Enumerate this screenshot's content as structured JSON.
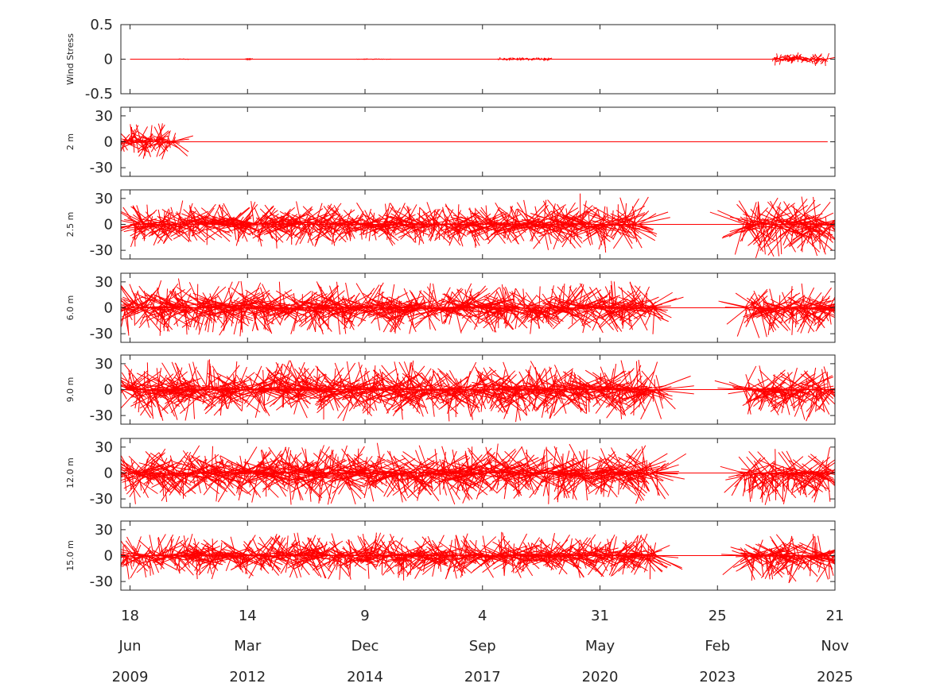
{
  "figure": {
    "color_stick": "#ff0000",
    "color_axes": "#262626",
    "x_axis": {
      "ticks": [
        {
          "day": "18",
          "month": "Jun",
          "year": "2009",
          "date": "2009-06-18"
        },
        {
          "day": "14",
          "month": "Mar",
          "year": "2012",
          "date": "2012-03-14"
        },
        {
          "day": "9",
          "month": "Dec",
          "year": "2014",
          "date": "2014-12-09"
        },
        {
          "day": "4",
          "month": "Sep",
          "year": "2017",
          "date": "2017-09-04"
        },
        {
          "day": "31",
          "month": "May",
          "year": "2020",
          "date": "2020-05-31"
        },
        {
          "day": "25",
          "month": "Feb",
          "year": "2023",
          "date": "2023-02-25"
        },
        {
          "day": "21",
          "month": "Nov",
          "year": "2025",
          "date": "2025-11-21"
        }
      ],
      "range": [
        "2009-04-01",
        "2025-11-21"
      ]
    }
  },
  "chart_data": [
    {
      "type": "stick-vector",
      "ylabel": "Wind Stress",
      "ylim": [
        -0.5,
        0.5
      ],
      "yticks": [
        "0.5",
        "0",
        "-0.5"
      ],
      "baseline": {
        "start": "2009-06-18",
        "end": "2025-09-20"
      },
      "data_spans": [
        {
          "start": "2010-08-01",
          "end": "2010-11-01",
          "amp": 0.01,
          "bias": 0.0
        },
        {
          "start": "2012-03-01",
          "end": "2012-04-20",
          "amp": 0.02,
          "bias": 0.0
        },
        {
          "start": "2014-10-01",
          "end": "2015-08-01",
          "amp": 0.01,
          "bias": 0.0
        },
        {
          "start": "2018-01-15",
          "end": "2019-04-01",
          "amp": 0.03,
          "bias": 0.0
        },
        {
          "start": "2024-06-15",
          "end": "2025-09-15",
          "amp": 0.1,
          "bias": 0.0
        }
      ]
    },
    {
      "type": "stick-vector",
      "ylabel": "2 m",
      "ylim": [
        -40,
        40
      ],
      "yticks": [
        "30",
        "0",
        "-30"
      ],
      "baseline": {
        "start": "2009-06-18",
        "end": "2025-09-20"
      },
      "data_spans": [
        {
          "start": "2009-04-01",
          "end": "2010-07-01",
          "amp": 22,
          "bias": 0
        }
      ]
    },
    {
      "type": "stick-vector",
      "ylabel": "2.5 m",
      "ylim": [
        -40,
        40
      ],
      "yticks": [
        "30",
        "0",
        "-30"
      ],
      "baseline": {
        "start": "2009-06-18",
        "end": "2025-09-20"
      },
      "data_spans": [
        {
          "start": "2009-07-01",
          "end": "2018-09-01",
          "amp": 28,
          "bias": 0
        },
        {
          "start": "2018-09-01",
          "end": "2021-05-01",
          "amp": 34,
          "bias": 2
        },
        {
          "start": "2023-10-01",
          "end": "2025-11-21",
          "amp": 36,
          "bias": -8
        }
      ]
    },
    {
      "type": "stick-vector",
      "ylabel": "6.0 m",
      "ylim": [
        -40,
        40
      ],
      "yticks": [
        "30",
        "0",
        "-30"
      ],
      "baseline": {
        "start": "2009-06-18",
        "end": "2025-09-20"
      },
      "data_spans": [
        {
          "start": "2009-04-01",
          "end": "2012-03-01",
          "amp": 36,
          "bias": -4
        },
        {
          "start": "2012-03-01",
          "end": "2021-10-01",
          "amp": 32,
          "bias": 0
        },
        {
          "start": "2023-10-01",
          "end": "2025-11-21",
          "amp": 30,
          "bias": -8
        }
      ]
    },
    {
      "type": "stick-vector",
      "ylabel": "9.0 m",
      "ylim": [
        -40,
        40
      ],
      "yticks": [
        "30",
        "0",
        "-30"
      ],
      "baseline": {
        "start": "2009-06-18",
        "end": "2025-09-20"
      },
      "data_spans": [
        {
          "start": "2009-04-01",
          "end": "2021-11-01",
          "amp": 36,
          "bias": -2
        },
        {
          "start": "2023-10-01",
          "end": "2025-11-21",
          "amp": 32,
          "bias": -8
        }
      ]
    },
    {
      "type": "stick-vector",
      "ylabel": "12.0 m",
      "ylim": [
        -40,
        40
      ],
      "yticks": [
        "30",
        "0",
        "-30"
      ],
      "baseline": {
        "start": "2009-06-18",
        "end": "2025-09-20"
      },
      "data_spans": [
        {
          "start": "2009-04-01",
          "end": "2021-10-01",
          "amp": 36,
          "bias": -2
        },
        {
          "start": "2023-10-01",
          "end": "2025-11-21",
          "amp": 32,
          "bias": -8
        }
      ]
    },
    {
      "type": "stick-vector",
      "ylabel": "15.0 m",
      "ylim": [
        -40,
        40
      ],
      "yticks": [
        "30",
        "0",
        "-30"
      ],
      "baseline": {
        "start": "2009-06-18",
        "end": "2025-09-20"
      },
      "data_spans": [
        {
          "start": "2009-04-01",
          "end": "2021-10-01",
          "amp": 28,
          "bias": -2
        },
        {
          "start": "2023-10-01",
          "end": "2025-11-21",
          "amp": 30,
          "bias": -8
        }
      ]
    }
  ]
}
